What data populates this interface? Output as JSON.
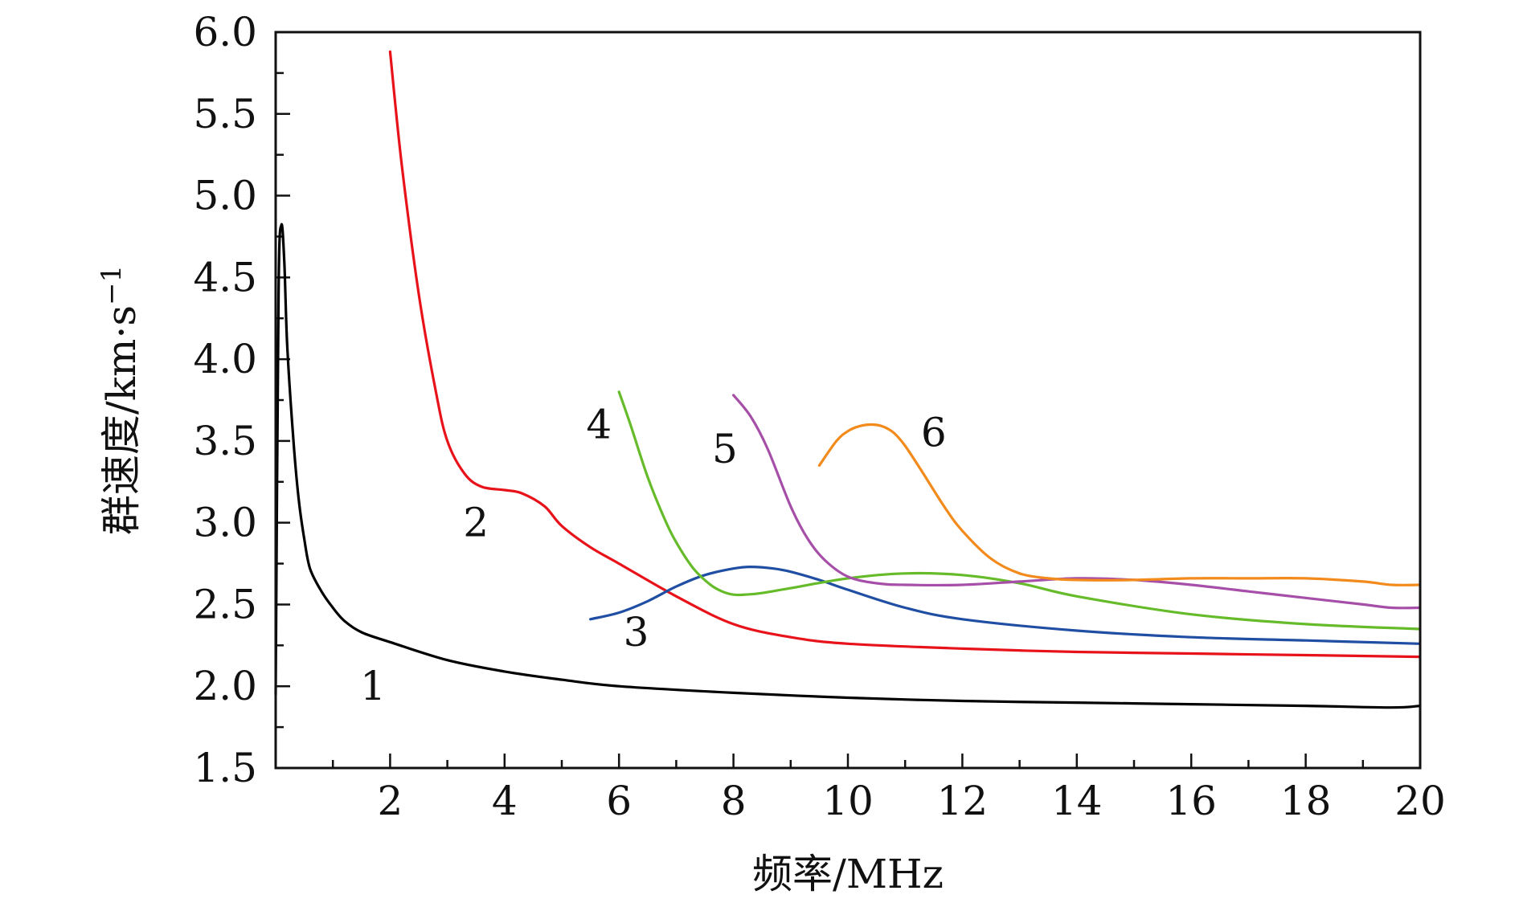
{
  "chart_data": {
    "type": "line",
    "xlabel": "频率/MHz",
    "ylabel": "群速度/km·s",
    "ylabel_exponent": "−1",
    "xlim": [
      0,
      20
    ],
    "ylim": [
      1.5,
      6.0
    ],
    "x_ticks": [
      2,
      4,
      6,
      8,
      10,
      12,
      14,
      16,
      18,
      20
    ],
    "x_tick_labels": [
      "2",
      "4",
      "6",
      "8",
      "10",
      "12",
      "14",
      "16",
      "18",
      "20"
    ],
    "y_ticks": [
      1.5,
      2.0,
      2.5,
      3.0,
      3.5,
      4.0,
      4.5,
      5.0,
      5.5,
      6.0
    ],
    "y_tick_labels": [
      "1.5",
      "2.0",
      "2.5",
      "3.0",
      "3.5",
      "4.0",
      "4.5",
      "5.0",
      "5.5",
      "6.0"
    ],
    "grid": false,
    "series": [
      {
        "label": "1",
        "color": "#000000",
        "label_pos": [
          1.7,
          2.0
        ],
        "x": [
          0.0,
          0.05,
          0.1,
          0.15,
          0.2,
          0.3,
          0.4,
          0.5,
          0.6,
          0.8,
          1.0,
          1.2,
          1.5,
          2.0,
          3.0,
          4.0,
          5.0,
          6.0,
          8.0,
          10.0,
          12.0,
          14.0,
          16.0,
          18.0,
          19.5,
          20.0
        ],
        "y": [
          1.95,
          4.4,
          4.82,
          4.6,
          4.1,
          3.55,
          3.15,
          2.9,
          2.72,
          2.58,
          2.48,
          2.4,
          2.33,
          2.27,
          2.16,
          2.09,
          2.04,
          2.0,
          1.96,
          1.93,
          1.91,
          1.9,
          1.89,
          1.88,
          1.87,
          1.88
        ]
      },
      {
        "label": "2",
        "color": "#e8131a",
        "label_pos": [
          3.5,
          3.0
        ],
        "x": [
          2.0,
          2.2,
          2.5,
          2.8,
          3.0,
          3.3,
          3.6,
          4.0,
          4.3,
          4.7,
          5.0,
          5.5,
          6.0,
          7.0,
          8.0,
          9.0,
          10.0,
          12.0,
          14.0,
          16.0,
          18.0,
          20.0
        ],
        "y": [
          5.88,
          5.2,
          4.4,
          3.8,
          3.5,
          3.3,
          3.22,
          3.2,
          3.18,
          3.1,
          2.98,
          2.85,
          2.75,
          2.55,
          2.38,
          2.3,
          2.26,
          2.23,
          2.21,
          2.2,
          2.19,
          2.18
        ]
      },
      {
        "label": "3",
        "color": "#1f4ea3",
        "label_pos": [
          6.3,
          2.33
        ],
        "x": [
          5.5,
          6.0,
          6.5,
          7.0,
          7.5,
          8.0,
          8.3,
          8.7,
          9.0,
          9.5,
          10.0,
          11.0,
          12.0,
          14.0,
          16.0,
          18.0,
          20.0
        ],
        "y": [
          2.41,
          2.45,
          2.52,
          2.61,
          2.68,
          2.72,
          2.73,
          2.72,
          2.7,
          2.65,
          2.59,
          2.48,
          2.41,
          2.34,
          2.3,
          2.28,
          2.26
        ]
      },
      {
        "label": "4",
        "color": "#66bb2a",
        "label_pos": [
          5.65,
          3.6
        ],
        "x": [
          6.0,
          6.2,
          6.5,
          6.8,
          7.0,
          7.3,
          7.6,
          7.8,
          8.0,
          8.2,
          8.5,
          9.0,
          10.0,
          11.0,
          12.0,
          13.0,
          14.0,
          16.0,
          18.0,
          20.0
        ],
        "y": [
          3.8,
          3.6,
          3.28,
          3.02,
          2.88,
          2.72,
          2.62,
          2.58,
          2.56,
          2.56,
          2.57,
          2.6,
          2.66,
          2.69,
          2.68,
          2.63,
          2.55,
          2.44,
          2.38,
          2.35
        ]
      },
      {
        "label": "5",
        "color": "#a64fa8",
        "label_pos": [
          7.85,
          3.45
        ],
        "x": [
          8.0,
          8.3,
          8.6,
          9.0,
          9.3,
          9.6,
          10.0,
          10.5,
          11.0,
          12.0,
          13.0,
          14.0,
          15.0,
          16.0,
          17.0,
          18.0,
          19.0,
          19.5,
          20.0
        ],
        "y": [
          3.78,
          3.65,
          3.45,
          3.1,
          2.9,
          2.77,
          2.67,
          2.63,
          2.62,
          2.62,
          2.64,
          2.66,
          2.65,
          2.62,
          2.58,
          2.54,
          2.5,
          2.48,
          2.48
        ]
      },
      {
        "label": "6",
        "color": "#f28a1c",
        "label_pos": [
          11.5,
          3.55
        ],
        "x": [
          9.5,
          9.8,
          10.0,
          10.2,
          10.4,
          10.6,
          10.8,
          11.0,
          11.3,
          11.7,
          12.0,
          12.5,
          13.0,
          13.5,
          14.0,
          15.0,
          16.0,
          17.0,
          18.0,
          19.0,
          19.5,
          20.0
        ],
        "y": [
          3.35,
          3.5,
          3.56,
          3.59,
          3.6,
          3.59,
          3.55,
          3.47,
          3.31,
          3.09,
          2.95,
          2.78,
          2.69,
          2.66,
          2.65,
          2.65,
          2.66,
          2.66,
          2.66,
          2.64,
          2.62,
          2.62
        ]
      }
    ]
  }
}
